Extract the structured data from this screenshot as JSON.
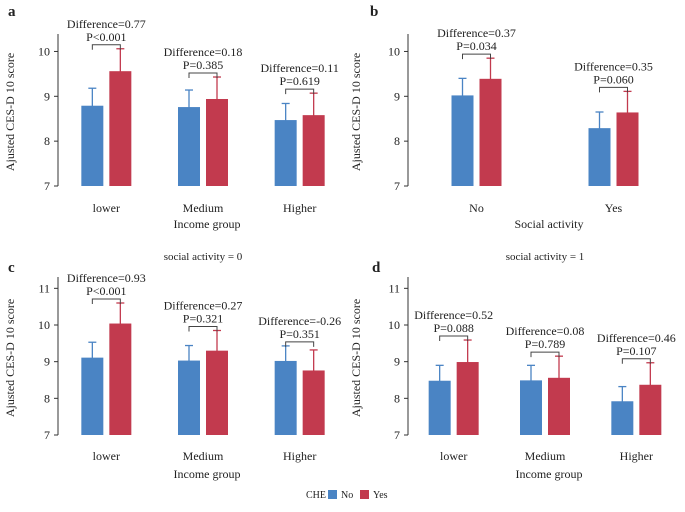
{
  "colors": {
    "no": "#4a84c4",
    "yes": "#c23a4e",
    "axis": "#333333",
    "bracket": "#444444"
  },
  "legend": {
    "title": "CHE",
    "items": [
      "No",
      "Yes"
    ]
  },
  "chart_data": [
    {
      "id": "a",
      "type": "bar",
      "letter": "a",
      "subtitle": "",
      "categories": [
        "lower",
        "Medium",
        "Higher"
      ],
      "series": [
        {
          "name": "No",
          "values": [
            8.79,
            8.76,
            8.47
          ],
          "err": [
            0.39,
            0.38,
            0.37
          ]
        },
        {
          "name": "Yes",
          "values": [
            9.56,
            8.94,
            8.58
          ],
          "err": [
            0.5,
            0.49,
            0.49
          ]
        }
      ],
      "annotations": [
        {
          "diff": "Difference=0.77",
          "p": "P<0.001"
        },
        {
          "diff": "Difference=0.18",
          "p": "P=0.385"
        },
        {
          "diff": "Difference=0.11",
          "p": "P=0.619"
        }
      ],
      "ylim": [
        7,
        10.3
      ],
      "yticks": [
        "7",
        "8",
        "9",
        "10"
      ],
      "ylabel": "Ajusted CES-D 10 score",
      "xlabel": "Income group"
    },
    {
      "id": "b",
      "type": "bar",
      "letter": "b",
      "subtitle": "",
      "categories": [
        "No",
        "Yes"
      ],
      "series": [
        {
          "name": "No",
          "values": [
            9.02,
            8.29
          ],
          "err": [
            0.38,
            0.36
          ]
        },
        {
          "name": "Yes",
          "values": [
            9.39,
            8.64
          ],
          "err": [
            0.46,
            0.47
          ]
        }
      ],
      "annotations": [
        {
          "diff": "Difference=0.37",
          "p": "P=0.034"
        },
        {
          "diff": "Difference=0.35",
          "p": "P=0.060"
        }
      ],
      "ylim": [
        7,
        10.3
      ],
      "yticks": [
        "7",
        "8",
        "9",
        "10"
      ],
      "ylabel": "Ajusted CES-D 10 score",
      "xlabel": "Social activity"
    },
    {
      "id": "c",
      "type": "bar",
      "letter": "c",
      "subtitle": "social activity = 0",
      "categories": [
        "lower",
        "Medium",
        "Higher"
      ],
      "series": [
        {
          "name": "No",
          "values": [
            9.11,
            9.03,
            9.02
          ],
          "err": [
            0.42,
            0.41,
            0.41
          ]
        },
        {
          "name": "Yes",
          "values": [
            10.04,
            9.3,
            8.76
          ],
          "err": [
            0.56,
            0.55,
            0.56
          ]
        }
      ],
      "annotations": [
        {
          "diff": "Difference=0.93",
          "p": "P<0.001"
        },
        {
          "diff": "Difference=0.27",
          "p": "P=0.321"
        },
        {
          "diff": "Difference=-0.26",
          "p": "P=0.351"
        }
      ],
      "ylim": [
        7,
        11.2
      ],
      "yticks": [
        "7",
        "8",
        "9",
        "10",
        "11"
      ],
      "ylabel": "Ajusted CES-D 10 score",
      "xlabel": "Income group"
    },
    {
      "id": "d",
      "type": "bar",
      "letter": "d",
      "subtitle": "social activity = 1",
      "categories": [
        "lower",
        "Medium",
        "Higher"
      ],
      "series": [
        {
          "name": "No",
          "values": [
            8.48,
            8.49,
            7.92
          ],
          "err": [
            0.42,
            0.41,
            0.4
          ]
        },
        {
          "name": "Yes",
          "values": [
            8.99,
            8.56,
            8.37
          ],
          "err": [
            0.6,
            0.59,
            0.6
          ]
        }
      ],
      "annotations": [
        {
          "diff": "Difference=0.52",
          "p": "P=0.088"
        },
        {
          "diff": "Difference=0.08",
          "p": "P=0.789"
        },
        {
          "diff": "Difference=0.46",
          "p": "P=0.107"
        }
      ],
      "ylim": [
        7,
        11.2
      ],
      "yticks": [
        "7",
        "8",
        "9",
        "10",
        "11"
      ],
      "ylabel": "Ajusted CES-D 10 score",
      "xlabel": "Income group"
    }
  ]
}
